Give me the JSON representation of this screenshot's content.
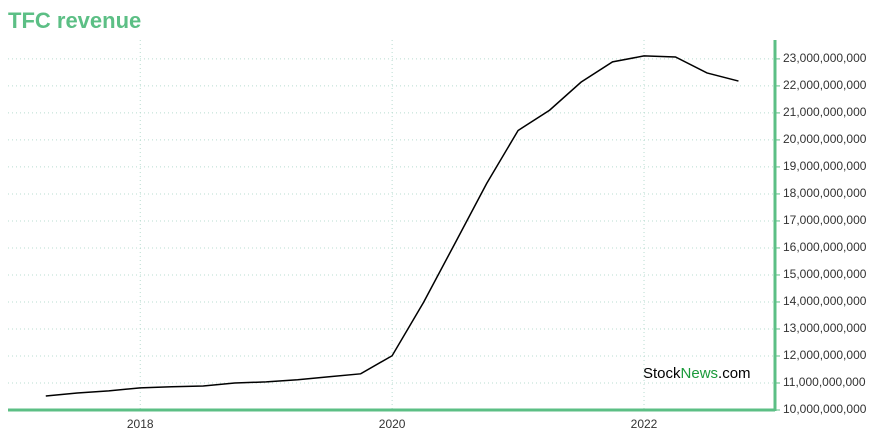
{
  "chart_data": {
    "type": "line",
    "title": "TFC revenue",
    "x": [
      2017.25,
      2017.5,
      2017.75,
      2018,
      2018.25,
      2018.5,
      2018.75,
      2019,
      2019.25,
      2019.5,
      2019.75,
      2020,
      2020.25,
      2020.5,
      2020.75,
      2021,
      2021.25,
      2021.5,
      2021.75,
      2022,
      2022.25,
      2022.5,
      2022.75
    ],
    "series": [
      {
        "name": "TFC revenue",
        "color": "#000000",
        "values": [
          10520000000,
          10630000000,
          10710000000,
          10820000000,
          10860000000,
          10890000000,
          11000000000,
          11040000000,
          11120000000,
          11230000000,
          11340000000,
          12010000000,
          13990000000,
          16180000000,
          18380000000,
          20350000000,
          21100000000,
          22140000000,
          22890000000,
          23110000000,
          23070000000,
          22480000000,
          22180000000
        ]
      }
    ],
    "xlim": [
      2016.95,
      2023.04
    ],
    "xticks": [
      2018,
      2020,
      2022
    ],
    "ylim": [
      10000000000,
      23700000000
    ],
    "yticks": [
      {
        "value": 10000000000,
        "label": "10,000,000,000"
      },
      {
        "value": 11000000000,
        "label": "11,000,000,000"
      },
      {
        "value": 12000000000,
        "label": "12,000,000,000"
      },
      {
        "value": 13000000000,
        "label": "13,000,000,000"
      },
      {
        "value": 14000000000,
        "label": "14,000,000,000"
      },
      {
        "value": 15000000000,
        "label": "15,000,000,000"
      },
      {
        "value": 16000000000,
        "label": "16,000,000,000"
      },
      {
        "value": 17000000000,
        "label": "17,000,000,000"
      },
      {
        "value": 18000000000,
        "label": "18,000,000,000"
      },
      {
        "value": 19000000000,
        "label": "19,000,000,000"
      },
      {
        "value": 20000000000,
        "label": "20,000,000,000"
      },
      {
        "value": 21000000000,
        "label": "21,000,000,000"
      },
      {
        "value": 22000000000,
        "label": "22,000,000,000"
      },
      {
        "value": 23000000000,
        "label": "23,000,000,000"
      }
    ],
    "grid": true,
    "axis_color": "#5cbf85",
    "watermark": {
      "prefix": "Stock",
      "highlight": "News",
      "suffix": ".com"
    }
  }
}
